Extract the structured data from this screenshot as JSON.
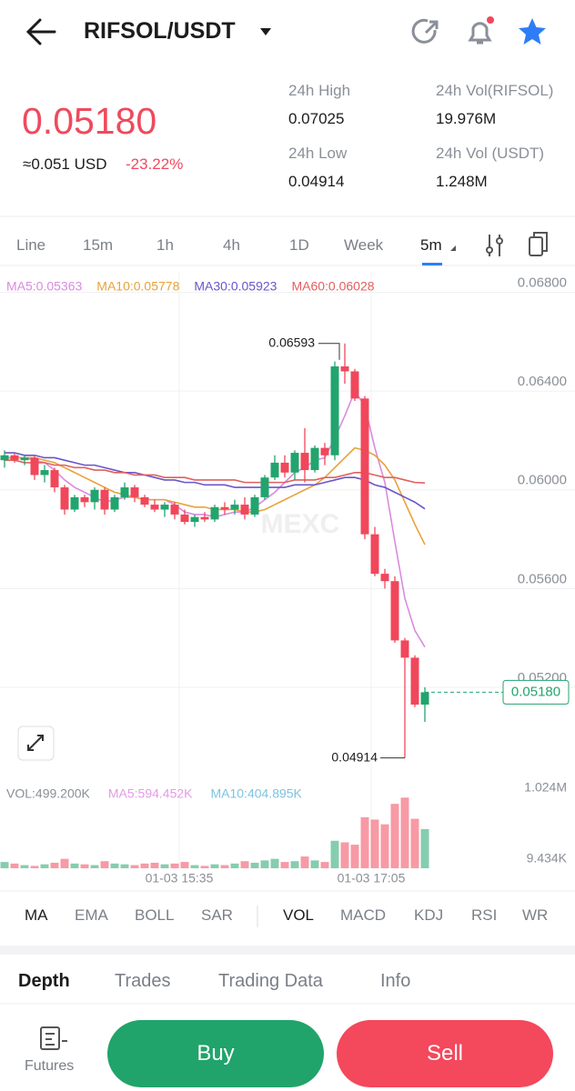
{
  "header": {
    "pair": "RIFSOL/USDT"
  },
  "ticker": {
    "price": "0.05180",
    "usd": "≈0.051 USD",
    "change": "-23.22%",
    "stats": [
      {
        "label": "24h High",
        "value": "0.07025"
      },
      {
        "label": "24h Vol(RIFSOL)",
        "value": "19.976M"
      },
      {
        "label": "24h Low",
        "value": "0.04914"
      },
      {
        "label": "24h Vol (USDT)",
        "value": "1.248M"
      }
    ]
  },
  "timeframes": [
    "Line",
    "15m",
    "1h",
    "4h",
    "1D",
    "Week",
    "5m"
  ],
  "chart_data": {
    "type": "candlestick",
    "watermark": "MEXC",
    "up_color": "#22a46e",
    "down_color": "#f0475b",
    "ylim": [
      0.0485,
      0.0685
    ],
    "yticks": [
      {
        "value": 0.068,
        "label": "0.06800"
      },
      {
        "value": 0.064,
        "label": "0.06400"
      },
      {
        "value": 0.06,
        "label": "0.06000"
      },
      {
        "value": 0.056,
        "label": "0.05600"
      },
      {
        "value": 0.052,
        "label": "0.05200"
      }
    ],
    "price_tag": "0.05180",
    "x_labels": [
      "01-03 15:35",
      "01-03 17:05"
    ],
    "open": [
      0.0612,
      0.0614,
      0.0612,
      0.0613,
      0.0606,
      0.0608,
      0.0601,
      0.0592,
      0.0597,
      0.0595,
      0.06,
      0.0592,
      0.0597,
      0.0601,
      0.0597,
      0.0594,
      0.0592,
      0.0594,
      0.059,
      0.0587,
      0.0589,
      0.0588,
      0.0593,
      0.0592,
      0.0594,
      0.059,
      0.0597,
      0.0605,
      0.0611,
      0.0607,
      0.0615,
      0.0608,
      0.0617,
      0.0614,
      0.065,
      0.0648,
      0.0637,
      0.0582,
      0.0566,
      0.0563,
      0.0539,
      0.0532,
      0.0513
    ],
    "high": [
      0.0616,
      0.0615,
      0.0614,
      0.0614,
      0.061,
      0.0609,
      0.0602,
      0.0598,
      0.0598,
      0.0601,
      0.0601,
      0.0598,
      0.0603,
      0.0602,
      0.0598,
      0.0596,
      0.0595,
      0.0595,
      0.0592,
      0.059,
      0.0591,
      0.0594,
      0.0595,
      0.0596,
      0.0597,
      0.0598,
      0.0606,
      0.0614,
      0.0614,
      0.0616,
      0.0625,
      0.0618,
      0.0619,
      0.0652,
      0.06593,
      0.0649,
      0.0638,
      0.0585,
      0.0568,
      0.0565,
      0.054,
      0.0533,
      0.052
    ],
    "low": [
      0.0609,
      0.0611,
      0.061,
      0.0604,
      0.0603,
      0.0599,
      0.059,
      0.0591,
      0.0593,
      0.0592,
      0.059,
      0.0591,
      0.0596,
      0.0595,
      0.0593,
      0.0591,
      0.0589,
      0.0588,
      0.0586,
      0.0585,
      0.0587,
      0.0587,
      0.059,
      0.059,
      0.0588,
      0.0589,
      0.0596,
      0.0604,
      0.0605,
      0.0604,
      0.0603,
      0.0607,
      0.061,
      0.0612,
      0.0643,
      0.0636,
      0.058,
      0.0565,
      0.056,
      0.0538,
      0.04914,
      0.0512,
      0.0506
    ],
    "close": [
      0.0614,
      0.0612,
      0.0613,
      0.0606,
      0.0608,
      0.0601,
      0.0592,
      0.0597,
      0.0595,
      0.06,
      0.0592,
      0.0597,
      0.0601,
      0.0597,
      0.0594,
      0.0592,
      0.0594,
      0.059,
      0.0587,
      0.0589,
      0.0588,
      0.0593,
      0.0592,
      0.0594,
      0.059,
      0.0597,
      0.0605,
      0.0611,
      0.0607,
      0.0615,
      0.0608,
      0.0617,
      0.0614,
      0.065,
      0.0648,
      0.0637,
      0.0582,
      0.0566,
      0.0563,
      0.0539,
      0.0532,
      0.0513,
      0.0518
    ],
    "ma": [
      {
        "name": "MA5:0.05363",
        "color": "#d98be0",
        "values": [
          0.0613,
          0.0613,
          0.0613,
          0.0612,
          0.0611,
          0.0608,
          0.0604,
          0.0601,
          0.0599,
          0.0597,
          0.0595,
          0.0596,
          0.0597,
          0.0597,
          0.0596,
          0.0596,
          0.0596,
          0.0594,
          0.0591,
          0.059,
          0.059,
          0.0589,
          0.059,
          0.0591,
          0.0591,
          0.0593,
          0.0596,
          0.0599,
          0.0603,
          0.0607,
          0.0609,
          0.0612,
          0.0613,
          0.0621,
          0.063,
          0.064,
          0.0634,
          0.0617,
          0.0603,
          0.0579,
          0.0556,
          0.0543,
          0.05363
        ]
      },
      {
        "name": "MA10:0.05778",
        "color": "#e8a23a",
        "values": [
          0.0613,
          0.0613,
          0.0613,
          0.0613,
          0.0612,
          0.0611,
          0.0609,
          0.0607,
          0.0605,
          0.0603,
          0.0601,
          0.0599,
          0.0598,
          0.0597,
          0.0596,
          0.0596,
          0.0596,
          0.0595,
          0.0594,
          0.0593,
          0.0593,
          0.0592,
          0.0592,
          0.0592,
          0.0591,
          0.0591,
          0.0592,
          0.0594,
          0.0596,
          0.0598,
          0.06,
          0.0602,
          0.0605,
          0.0609,
          0.0613,
          0.0617,
          0.0616,
          0.0614,
          0.061,
          0.0604,
          0.0595,
          0.0586,
          0.05778
        ]
      },
      {
        "name": "MA30:0.05923",
        "color": "#6a55c9",
        "values": [
          0.0615,
          0.0615,
          0.0614,
          0.0614,
          0.0613,
          0.0613,
          0.0612,
          0.0611,
          0.061,
          0.061,
          0.0609,
          0.0608,
          0.0607,
          0.0607,
          0.0606,
          0.0605,
          0.0604,
          0.0604,
          0.0603,
          0.0603,
          0.0602,
          0.0602,
          0.0602,
          0.0601,
          0.0601,
          0.0601,
          0.0601,
          0.0601,
          0.0601,
          0.0602,
          0.0602,
          0.0602,
          0.0603,
          0.0604,
          0.0605,
          0.0605,
          0.0604,
          0.0602,
          0.0601,
          0.0599,
          0.0597,
          0.0595,
          0.05923
        ]
      },
      {
        "name": "MA60:0.06028",
        "color": "#e0605f",
        "values": [
          0.0612,
          0.0612,
          0.0611,
          0.0611,
          0.0611,
          0.061,
          0.061,
          0.0609,
          0.0609,
          0.0608,
          0.0608,
          0.0607,
          0.0607,
          0.0606,
          0.0606,
          0.0606,
          0.0605,
          0.0605,
          0.0605,
          0.0604,
          0.0604,
          0.0604,
          0.0604,
          0.0604,
          0.0603,
          0.0603,
          0.0603,
          0.0603,
          0.0603,
          0.0604,
          0.0604,
          0.0604,
          0.0605,
          0.0605,
          0.0606,
          0.0607,
          0.0607,
          0.0606,
          0.0605,
          0.0605,
          0.0604,
          0.0603,
          0.06028
        ]
      }
    ],
    "volume": {
      "ylim": [
        0,
        1100000
      ],
      "yticks": [
        {
          "value": 1024000,
          "label": "1.024M"
        },
        {
          "value": 9434,
          "label": "9.434K"
        }
      ],
      "legend": [
        {
          "text": "VOL:499.200K",
          "color": "#8a8f98"
        },
        {
          "text": "MA5:594.452K",
          "color": "#e39be6"
        },
        {
          "text": "MA10:404.895K",
          "color": "#7cc3e0"
        }
      ],
      "values": [
        80000,
        60000,
        40000,
        30000,
        50000,
        70000,
        120000,
        60000,
        50000,
        40000,
        90000,
        60000,
        50000,
        40000,
        60000,
        70000,
        50000,
        60000,
        80000,
        40000,
        30000,
        50000,
        40000,
        60000,
        90000,
        70000,
        100000,
        120000,
        80000,
        90000,
        150000,
        100000,
        80000,
        350000,
        330000,
        300000,
        650000,
        620000,
        560000,
        820000,
        900000,
        630000,
        499200
      ]
    }
  },
  "indicators": [
    "MA",
    "EMA",
    "BOLL",
    "SAR",
    "VOL",
    "MACD",
    "KDJ",
    "RSI",
    "WR"
  ],
  "tabs": [
    "Depth",
    "Trades",
    "Trading Data",
    "Info"
  ],
  "footer": {
    "futures": "Futures",
    "buy": "Buy",
    "sell": "Sell"
  }
}
